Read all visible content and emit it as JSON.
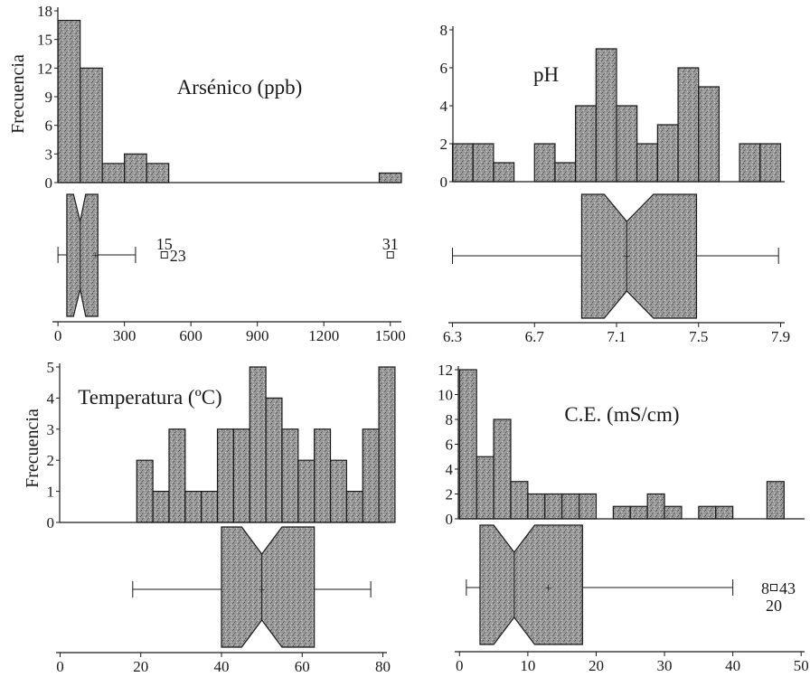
{
  "colors": {
    "fill": "#8c8c8c",
    "ink": "#1a1a1a",
    "background": "#ffffff"
  },
  "chart_data": [
    {
      "type": "bar",
      "panel": "top-left",
      "title": "Arsénico (ppb)",
      "ylabel": "Frecuencia",
      "yticks": [
        "0",
        "3",
        "6",
        "9",
        "12",
        "15",
        "18"
      ],
      "ylim": [
        0,
        18
      ],
      "xticks": [
        "0",
        "300",
        "600",
        "900",
        "1200",
        "1500"
      ],
      "xlim": [
        -25,
        1550
      ],
      "bins": [
        {
          "from": 0,
          "to": 100,
          "count": 17
        },
        {
          "from": 100,
          "to": 200,
          "count": 12
        },
        {
          "from": 200,
          "to": 300,
          "count": 2
        },
        {
          "from": 300,
          "to": 400,
          "count": 3
        },
        {
          "from": 400,
          "to": 500,
          "count": 2
        },
        {
          "from": 1450,
          "to": 1550,
          "count": 1
        }
      ],
      "boxplot": {
        "min": 0,
        "q1": 40,
        "median": 100,
        "q3": 180,
        "max": 350,
        "mean": 170,
        "notch_low": 70,
        "notch_high": 125
      },
      "outliers": [
        {
          "value": 480,
          "labels": [
            {
              "text": "15",
              "pos": "up"
            },
            {
              "text": "23",
              "pos": "right"
            }
          ]
        },
        {
          "value": 1500,
          "labels": [
            {
              "text": "31",
              "pos": "up"
            }
          ]
        }
      ]
    },
    {
      "type": "bar",
      "panel": "top-right",
      "title": "pH",
      "ylabel": "",
      "yticks": [
        "0",
        "2",
        "4",
        "6",
        "8"
      ],
      "ylim": [
        0,
        8
      ],
      "xticks": [
        "6.3",
        "6.7",
        "7.1",
        "7.5",
        "7.9"
      ],
      "xlim": [
        6.28,
        7.92
      ],
      "bins": [
        {
          "from": 6.3,
          "to": 6.4,
          "count": 2
        },
        {
          "from": 6.4,
          "to": 6.5,
          "count": 2
        },
        {
          "from": 6.5,
          "to": 6.6,
          "count": 1
        },
        {
          "from": 6.7,
          "to": 6.8,
          "count": 2
        },
        {
          "from": 6.8,
          "to": 6.9,
          "count": 1
        },
        {
          "from": 6.9,
          "to": 7.0,
          "count": 4
        },
        {
          "from": 7.0,
          "to": 7.1,
          "count": 7
        },
        {
          "from": 7.1,
          "to": 7.2,
          "count": 4
        },
        {
          "from": 7.2,
          "to": 7.3,
          "count": 2
        },
        {
          "from": 7.3,
          "to": 7.4,
          "count": 3
        },
        {
          "from": 7.4,
          "to": 7.5,
          "count": 6
        },
        {
          "from": 7.5,
          "to": 7.6,
          "count": 5
        },
        {
          "from": 7.7,
          "to": 7.8,
          "count": 2
        },
        {
          "from": 7.8,
          "to": 7.9,
          "count": 2
        }
      ],
      "boxplot": {
        "min": 6.3,
        "q1": 6.93,
        "median": 7.15,
        "q3": 7.49,
        "max": 7.89,
        "mean": 7.15,
        "notch_low": 7.04,
        "notch_high": 7.28
      },
      "outliers": []
    },
    {
      "type": "bar",
      "panel": "bottom-left",
      "title": "Temperatura (ºC)",
      "ylabel": "Frecuencia",
      "yticks": [
        "0",
        "1",
        "2",
        "3",
        "4",
        "5"
      ],
      "ylim": [
        0,
        5
      ],
      "xticks": [
        "0",
        "20",
        "40",
        "60",
        "80"
      ],
      "xlim": [
        -1,
        81
      ],
      "bins": [
        {
          "from": 19,
          "to": 23,
          "count": 2
        },
        {
          "from": 23,
          "to": 27,
          "count": 1
        },
        {
          "from": 27,
          "to": 31,
          "count": 3
        },
        {
          "from": 31,
          "to": 35,
          "count": 1
        },
        {
          "from": 35,
          "to": 39,
          "count": 1
        },
        {
          "from": 39,
          "to": 43,
          "count": 3
        },
        {
          "from": 43,
          "to": 47,
          "count": 3
        },
        {
          "from": 47,
          "to": 51,
          "count": 5
        },
        {
          "from": 51,
          "to": 55,
          "count": 4
        },
        {
          "from": 55,
          "to": 59,
          "count": 3
        },
        {
          "from": 59,
          "to": 63,
          "count": 2
        },
        {
          "from": 63,
          "to": 67,
          "count": 3
        },
        {
          "from": 67,
          "to": 71,
          "count": 2
        },
        {
          "from": 71,
          "to": 75,
          "count": 1
        },
        {
          "from": 75,
          "to": 79,
          "count": 3
        },
        {
          "from": 79,
          "to": 83,
          "count": 5
        }
      ],
      "boxplot": {
        "min": 18,
        "q1": 40,
        "median": 50,
        "q3": 63,
        "max": 77,
        "mean": 50,
        "notch_low": 45,
        "notch_high": 55
      },
      "outliers": []
    },
    {
      "type": "bar",
      "panel": "bottom-right",
      "title": "C.E. (mS/cm)",
      "ylabel": "",
      "yticks": [
        "0",
        "2",
        "4",
        "6",
        "8",
        "10",
        "12"
      ],
      "ylim": [
        0,
        12
      ],
      "xticks": [
        "0",
        "10",
        "20",
        "30",
        "40",
        "50"
      ],
      "xlim": [
        -0.7,
        50.5
      ],
      "bins": [
        {
          "from": 0,
          "to": 2.5,
          "count": 12
        },
        {
          "from": 2.5,
          "to": 5,
          "count": 5
        },
        {
          "from": 5,
          "to": 7.5,
          "count": 8
        },
        {
          "from": 7.5,
          "to": 10,
          "count": 3
        },
        {
          "from": 10,
          "to": 12.5,
          "count": 2
        },
        {
          "from": 12.5,
          "to": 15,
          "count": 2
        },
        {
          "from": 15,
          "to": 17.5,
          "count": 2
        },
        {
          "from": 17.5,
          "to": 20,
          "count": 2
        },
        {
          "from": 22.5,
          "to": 25,
          "count": 1
        },
        {
          "from": 25,
          "to": 27.5,
          "count": 1
        },
        {
          "from": 27.5,
          "to": 30,
          "count": 2
        },
        {
          "from": 30,
          "to": 32.5,
          "count": 1
        },
        {
          "from": 35,
          "to": 37.5,
          "count": 1
        },
        {
          "from": 37.5,
          "to": 40,
          "count": 1
        },
        {
          "from": 45,
          "to": 47.5,
          "count": 3
        }
      ],
      "boxplot": {
        "min": 1,
        "q1": 3,
        "median": 8,
        "q3": 18,
        "max": 40,
        "mean": 13,
        "notch_low": 5,
        "notch_high": 11
      },
      "outliers": [
        {
          "value": 46,
          "labels": [
            {
              "text": "8",
              "pos": "left"
            },
            {
              "text": "43",
              "pos": "right"
            },
            {
              "text": "20",
              "pos": "down"
            }
          ]
        }
      ]
    }
  ]
}
